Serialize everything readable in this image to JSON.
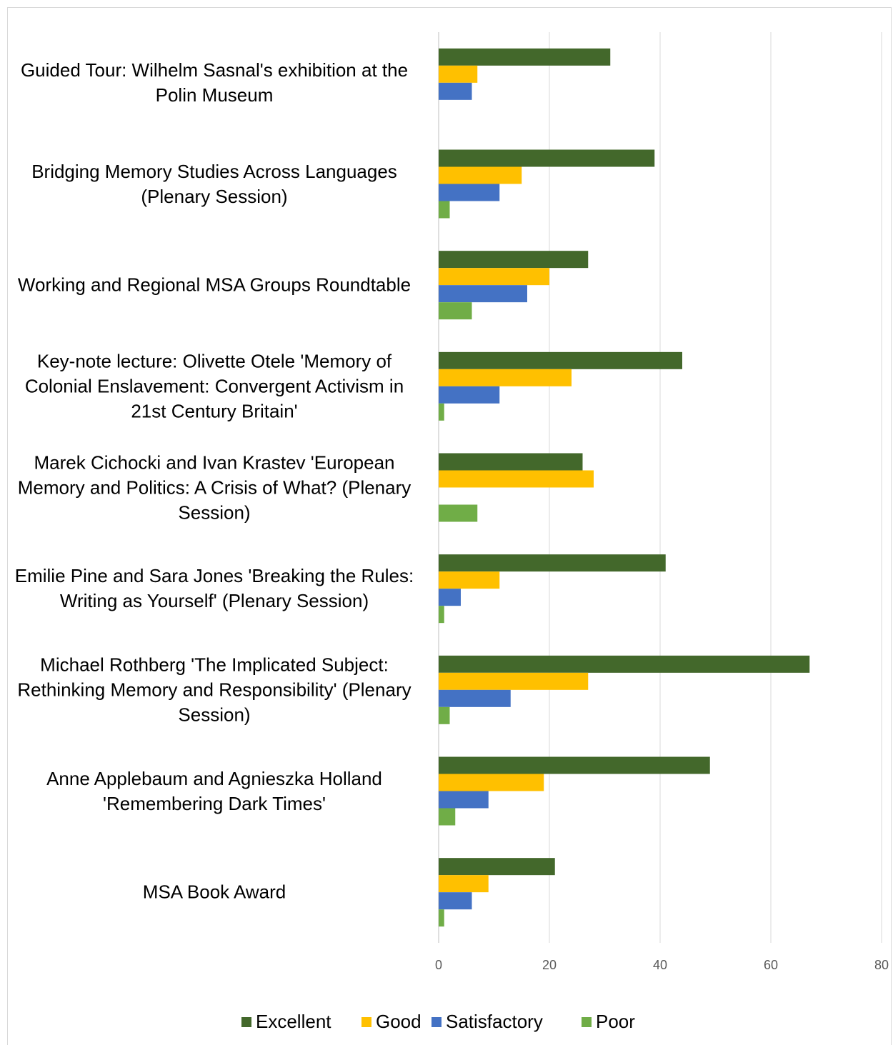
{
  "chart_data": {
    "type": "bar",
    "orientation": "horizontal",
    "categories": [
      "Guided Tour: Wilhelm Sasnal's exhibition at the Polin Museum",
      "Bridging Memory Studies Across Languages (Plenary Session)",
      "Working and Regional MSA Groups Roundtable",
      "Key-note lecture: Olivette Otele 'Memory of Colonial Enslavement: Convergent Activism in 21st Century Britain'",
      "Marek Cichocki and Ivan Krastev 'European Memory and Politics: A Crisis of What? (Plenary Session)",
      "Emilie Pine and Sara Jones 'Breaking the Rules: Writing as Yourself' (Plenary Session)",
      "Michael Rothberg 'The Implicated Subject: Rethinking Memory and Responsibility' (Plenary Session)",
      "Anne Applebaum and Agnieszka Holland 'Remembering Dark Times'",
      "MSA Book Award"
    ],
    "series": [
      {
        "name": "Excellent",
        "color": "#43682b",
        "values": [
          31,
          39,
          27,
          44,
          26,
          41,
          67,
          49,
          21
        ]
      },
      {
        "name": "Good",
        "color": "#ffc000",
        "values": [
          7,
          15,
          20,
          24,
          28,
          11,
          27,
          19,
          9
        ]
      },
      {
        "name": "Satisfactory",
        "color": "#4472c4",
        "values": [
          6,
          11,
          16,
          11,
          0,
          4,
          13,
          9,
          6
        ]
      },
      {
        "name": "Poor",
        "color": "#70ad47",
        "values": [
          0,
          2,
          6,
          1,
          7,
          1,
          2,
          3,
          1
        ]
      }
    ],
    "xlim": [
      0,
      80
    ],
    "xticks": [
      0,
      20,
      40,
      60,
      80
    ],
    "grid": true,
    "legend": "bottom"
  }
}
